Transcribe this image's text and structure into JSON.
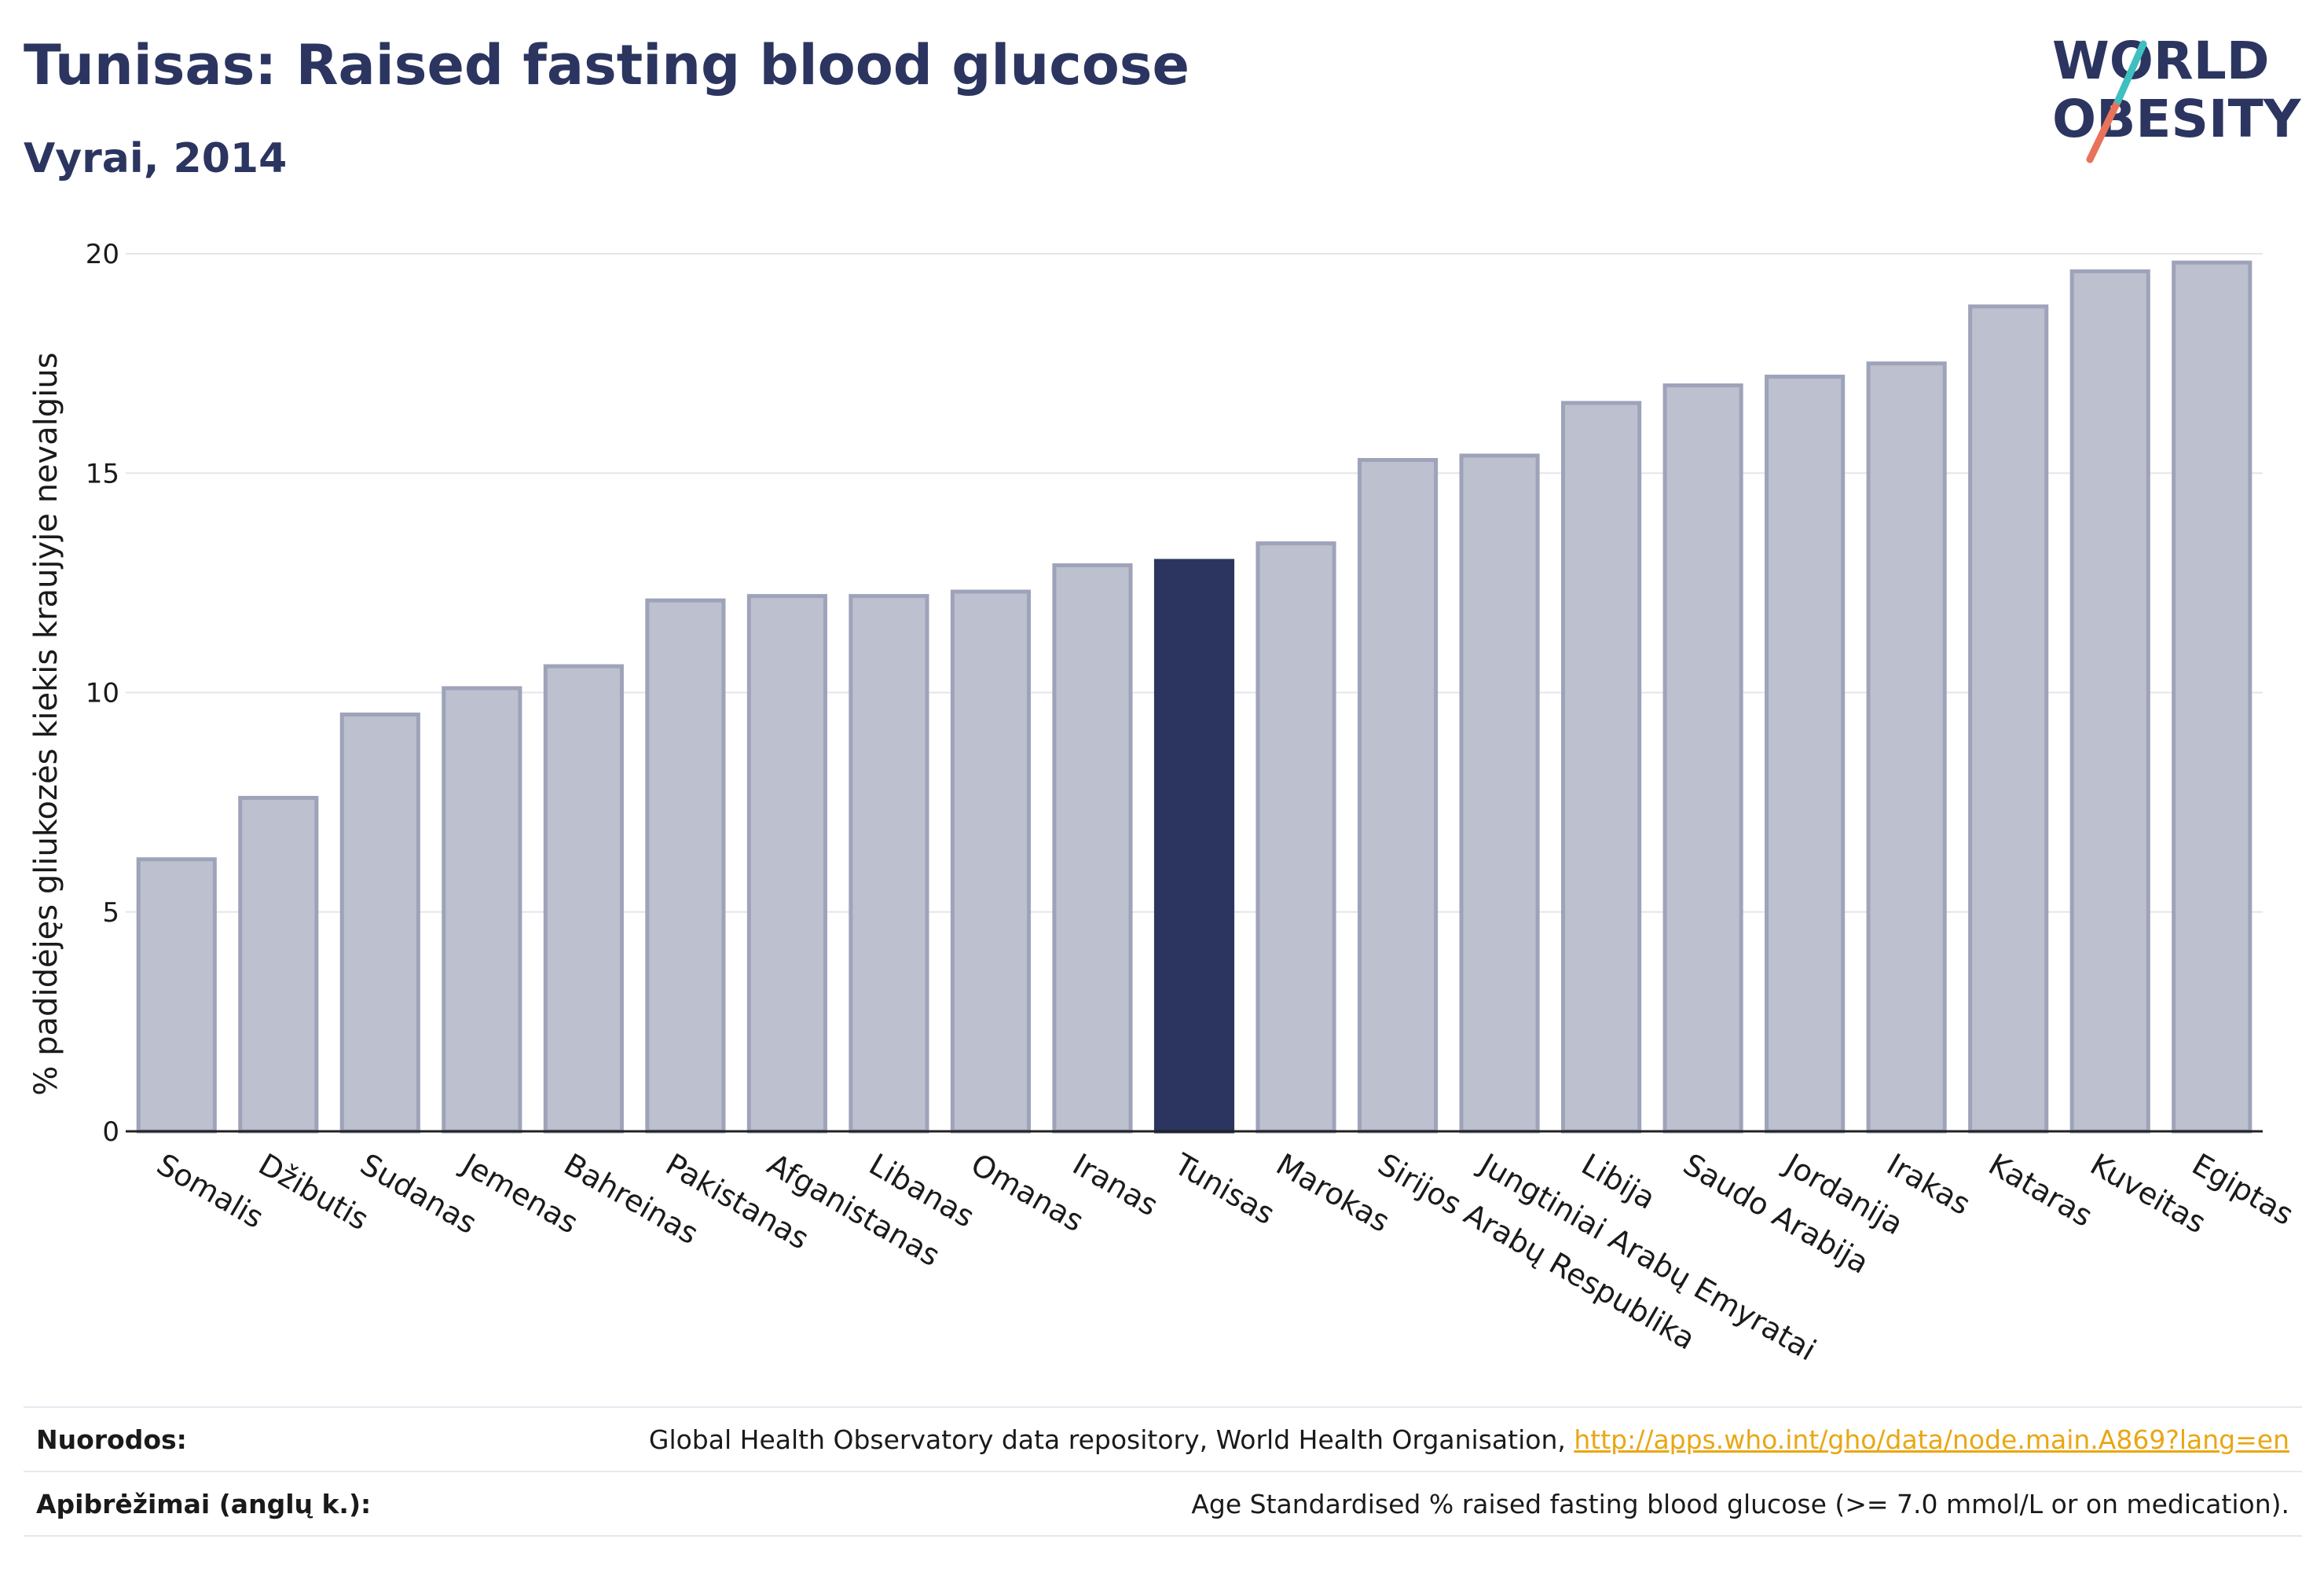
{
  "header": {
    "title": "Tunisas: Raised fasting blood glucose",
    "subtitle": "Vyrai, 2014"
  },
  "logo": {
    "line1": "WORLD",
    "line2": "OBESITY",
    "slash_colors": [
      "#3fbfbf",
      "#e8735a"
    ]
  },
  "colors": {
    "highlight": "#2b3560",
    "other": "#bcc0cf",
    "other_border": "#9ea3ba",
    "grid": "#e4e6ec",
    "link": "#e8a713"
  },
  "chart_data": {
    "type": "bar",
    "title": "",
    "ylabel": "% padidėjęs gliukozės kiekis kraujyje nevalgius",
    "xlabel": "",
    "ylim": [
      0,
      20
    ],
    "yticks": [
      0,
      5,
      10,
      15,
      20
    ],
    "grid": true,
    "highlight": "Tunisas",
    "categories": [
      "Somalis",
      "Džibutis",
      "Sudanas",
      "Jemenas",
      "Bahreinas",
      "Pakistanas",
      "Afganistanas",
      "Libanas",
      "Omanas",
      "Iranas",
      "Tunisas",
      "Marokas",
      "Sirijos Arabų Respublika",
      "Jungtiniai Arabų Emyratai",
      "Libija",
      "Saudo Arabija",
      "Jordanija",
      "Irakas",
      "Kataras",
      "Kuveitas",
      "Egiptas"
    ],
    "values": [
      6.2,
      7.6,
      9.5,
      10.1,
      10.6,
      12.1,
      12.2,
      12.2,
      12.3,
      12.9,
      13.0,
      13.4,
      15.3,
      15.4,
      16.6,
      17.0,
      17.2,
      17.5,
      18.8,
      19.6,
      19.8
    ]
  },
  "footer": {
    "sources_label": "Nuorodos:",
    "sources_text": "Global Health Observatory data repository, World Health Organisation, ",
    "sources_link": "http://apps.who.int/gho/data/node.main.A869?lang=en",
    "definitions_label": "Apibrėžimai (anglų k.):",
    "definitions_text": "Age Standardised % raised fasting blood glucose (>= 7.0 mmol/L or on medication)."
  }
}
